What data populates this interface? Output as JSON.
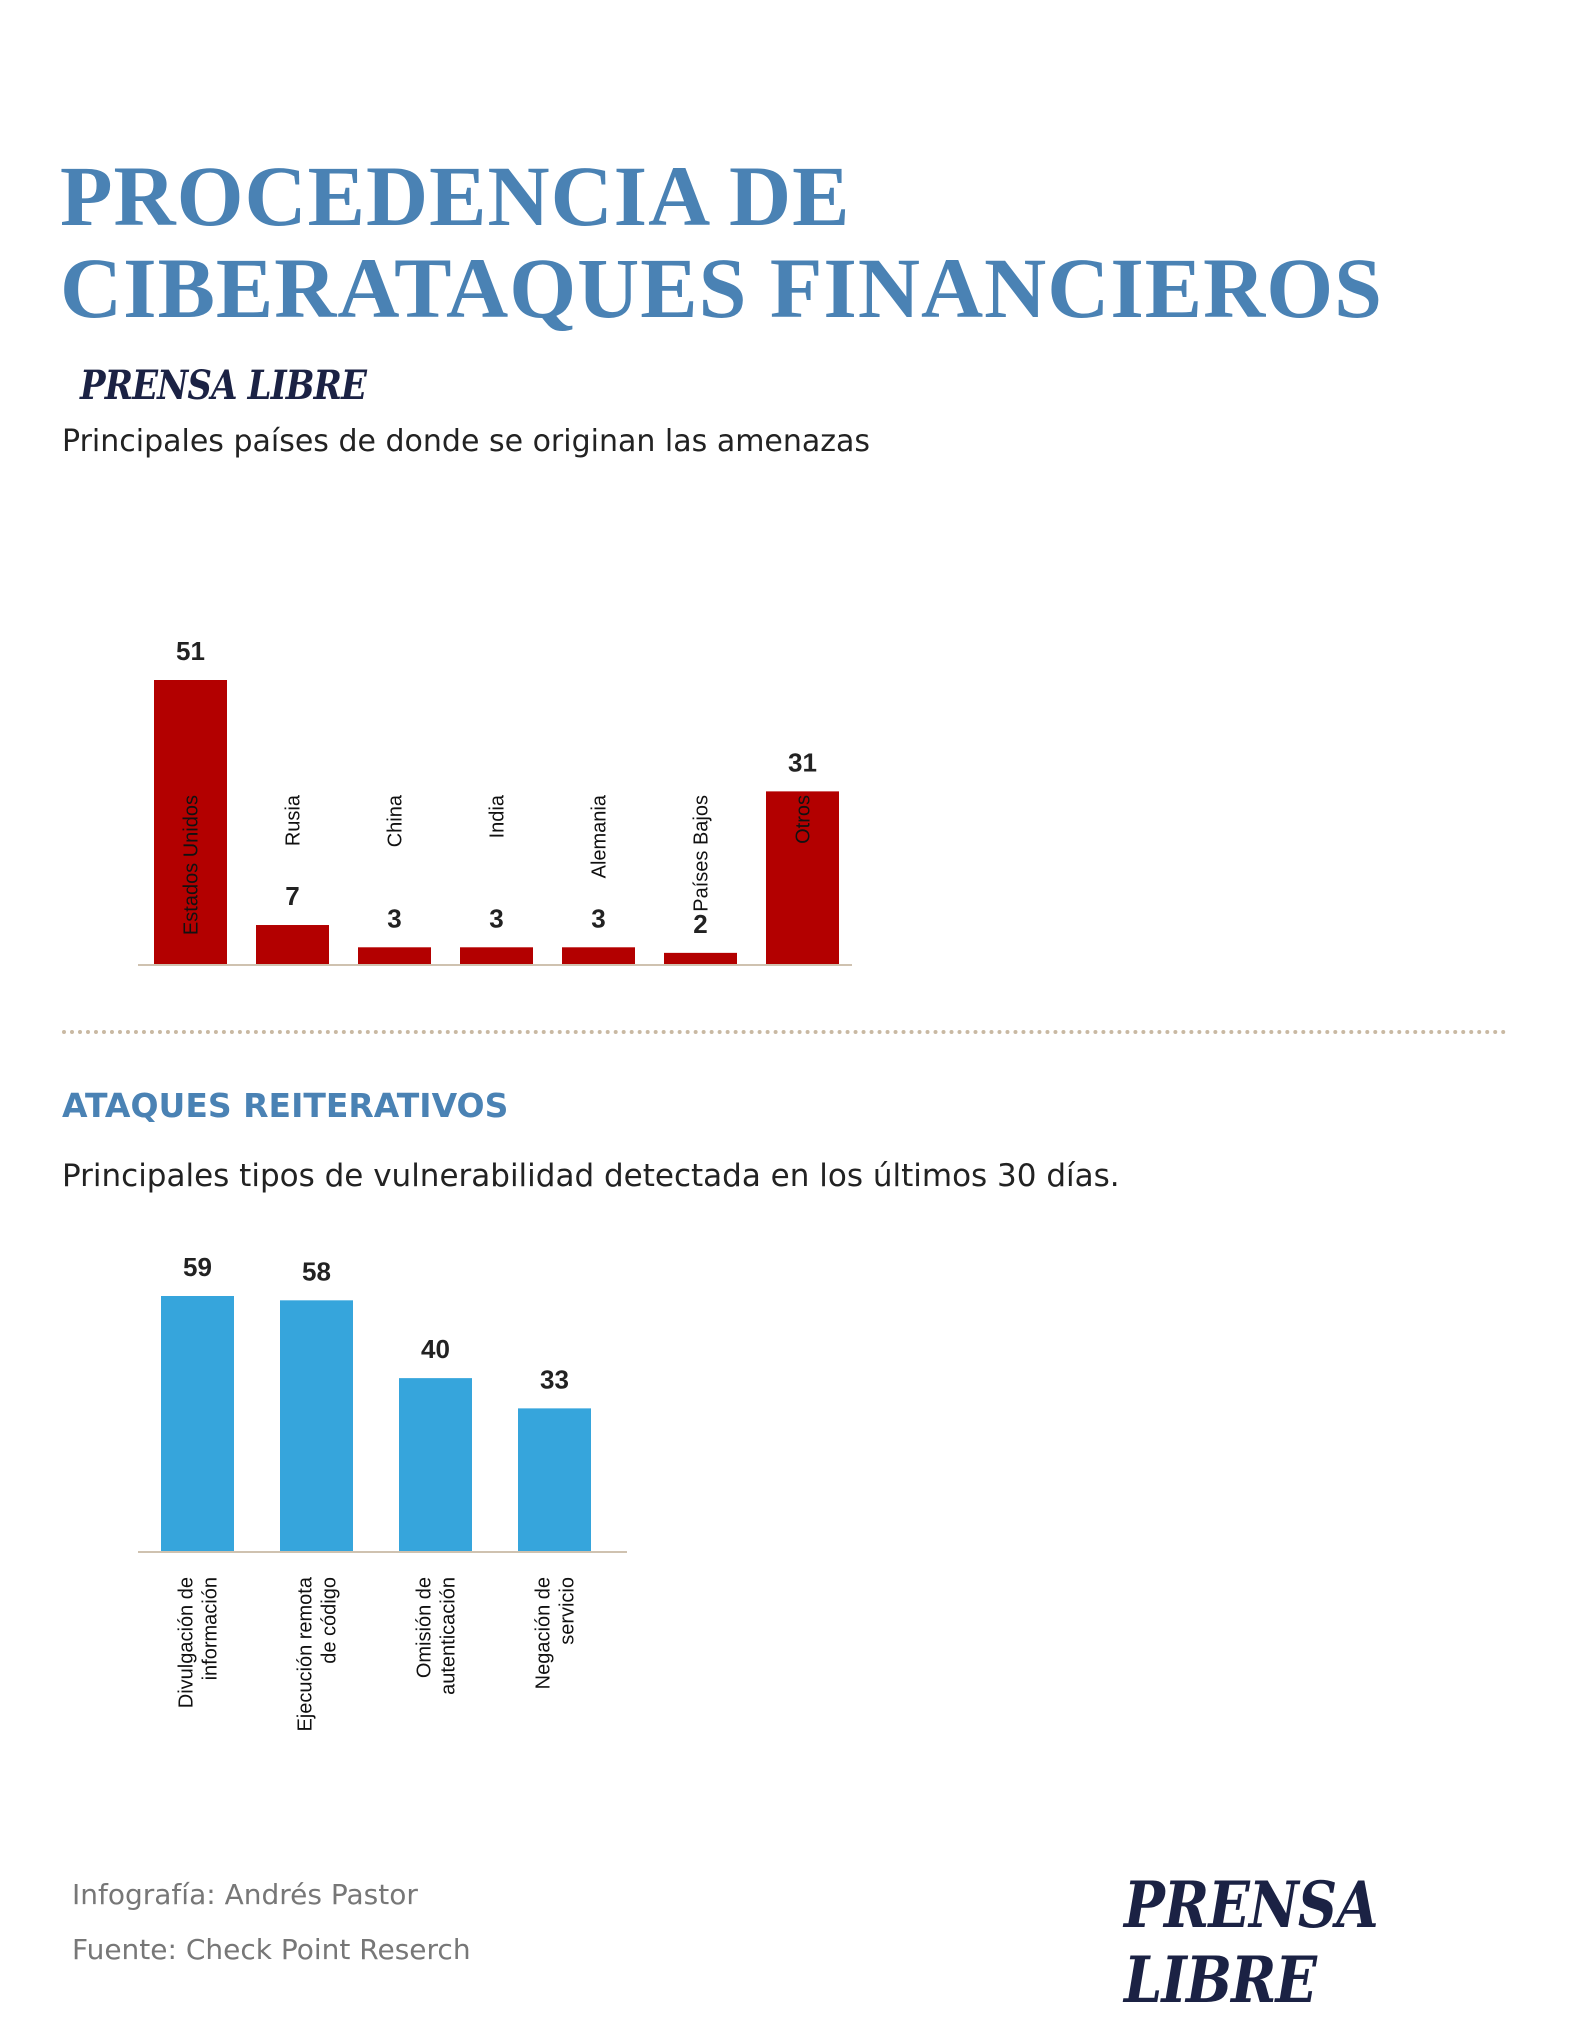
{
  "title_line1": "PROCEDENCIA DE",
  "title_line2": "CIBERATAQUES FINANCIEROS",
  "logo": "PRENSA LIBRE",
  "section2_heading": "ATAQUES REITERATIVOS",
  "footer": {
    "credit": "Infografía: Andrés Pastor",
    "source": "Fuente: Check Point Reserch"
  },
  "colors": {
    "title": "#4a82b4",
    "bars1": "#b30000",
    "bars2": "#36a5dc",
    "logo": "#1b2244"
  },
  "chart_data": [
    {
      "type": "bar",
      "title": "Principales países de donde se originan las amenazas",
      "categories": [
        "Estados Unidos",
        "Rusia",
        "China",
        "India",
        "Alemania",
        "Países Bajos",
        "Otros"
      ],
      "values": [
        51,
        7,
        3,
        3,
        3,
        2,
        31
      ],
      "ylim": [
        0,
        51
      ],
      "grid": false
    },
    {
      "type": "bar",
      "title": "Principales tipos de vulnerabilidad detectada en los últimos 30 días.",
      "categories": [
        [
          "Divulgación de",
          "información"
        ],
        [
          "Ejecución remota",
          "de código"
        ],
        [
          "Omisión de",
          "autenticación"
        ],
        [
          "Negación de",
          "servicio"
        ]
      ],
      "values": [
        59,
        58,
        40,
        33
      ],
      "ylim": [
        0,
        59
      ],
      "grid": false
    }
  ]
}
